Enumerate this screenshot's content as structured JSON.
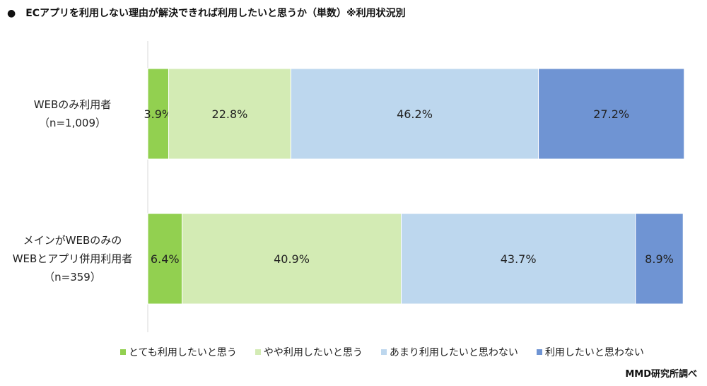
{
  "title": "●　ECアプリを利用しない理由が解決できれば利用したいと思うか（単数）※利用状況別",
  "source": "MMD研究所調べ",
  "chart_data": {
    "type": "bar",
    "orientation": "horizontal",
    "stacked": "percent",
    "categories": [
      [
        "WEBのみ利用者",
        "（n=1,009）"
      ],
      [
        "メインがWEBのみの",
        "WEBとアプリ併用利用者",
        "（n=359）"
      ]
    ],
    "series": [
      {
        "name": "とても利用したいと思う",
        "color": "#92d050",
        "values": [
          3.9,
          6.4
        ]
      },
      {
        "name": "やや利用したいと思う",
        "color": "#d3ebb4",
        "values": [
          22.8,
          40.9
        ]
      },
      {
        "name": "あまり利用したいと思わない",
        "color": "#bdd7ee",
        "values": [
          46.2,
          43.7
        ]
      },
      {
        "name": "利用したいと思わない",
        "color": "#6f94d3",
        "values": [
          27.2,
          8.9
        ]
      }
    ],
    "legend": "bottom",
    "grid": false
  }
}
